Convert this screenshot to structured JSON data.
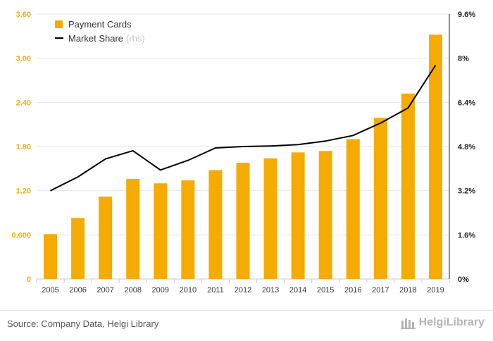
{
  "colors": {
    "bar": "#f5ab00",
    "line": "#000000",
    "left_axis": "#f5ab00",
    "right_axis": "#222222",
    "grid": "#e6e6e6"
  },
  "legend": {
    "items": [
      {
        "label": "Payment Cards",
        "suffix": ""
      },
      {
        "label": "Market Share",
        "suffix": "(rhs)"
      }
    ]
  },
  "footer": {
    "source": "Source: Company Data, Helgi Library",
    "logo": "HelgiLibrary",
    "logo_icon": "library-building-icon"
  },
  "chart_data": {
    "type": "bar",
    "categories": [
      "2005",
      "2006",
      "2007",
      "2008",
      "2009",
      "2010",
      "2011",
      "2012",
      "2013",
      "2014",
      "2015",
      "2016",
      "2017",
      "2018",
      "2019"
    ],
    "series": [
      {
        "name": "Payment Cards",
        "type": "bar",
        "axis": "left",
        "values": [
          0.61,
          0.83,
          1.12,
          1.36,
          1.3,
          1.34,
          1.48,
          1.58,
          1.64,
          1.72,
          1.74,
          1.9,
          2.19,
          2.52,
          3.32
        ]
      },
      {
        "name": "Market Share",
        "type": "line",
        "axis": "right",
        "values": [
          3.2,
          3.7,
          4.35,
          4.65,
          3.95,
          4.3,
          4.75,
          4.8,
          4.82,
          4.87,
          5.0,
          5.2,
          5.65,
          6.2,
          7.75
        ]
      }
    ],
    "left_axis": {
      "ylim": [
        0,
        3.6
      ],
      "ticks": [
        0,
        0.6,
        1.2,
        1.8,
        2.4,
        3.0,
        3.6
      ],
      "tick_labels": [
        "0",
        "0.600",
        "1.20",
        "1.80",
        "2.40",
        "3.00",
        "3.60"
      ]
    },
    "right_axis": {
      "ylim": [
        0,
        9.6
      ],
      "ticks": [
        0,
        1.6,
        3.2,
        4.8,
        6.4,
        8.0,
        9.6
      ],
      "tick_labels": [
        "0%",
        "1.6%",
        "3.2%",
        "4.8%",
        "6.4%",
        "8%",
        "9.6%"
      ]
    },
    "grid": true,
    "legend_position": "top-left"
  }
}
